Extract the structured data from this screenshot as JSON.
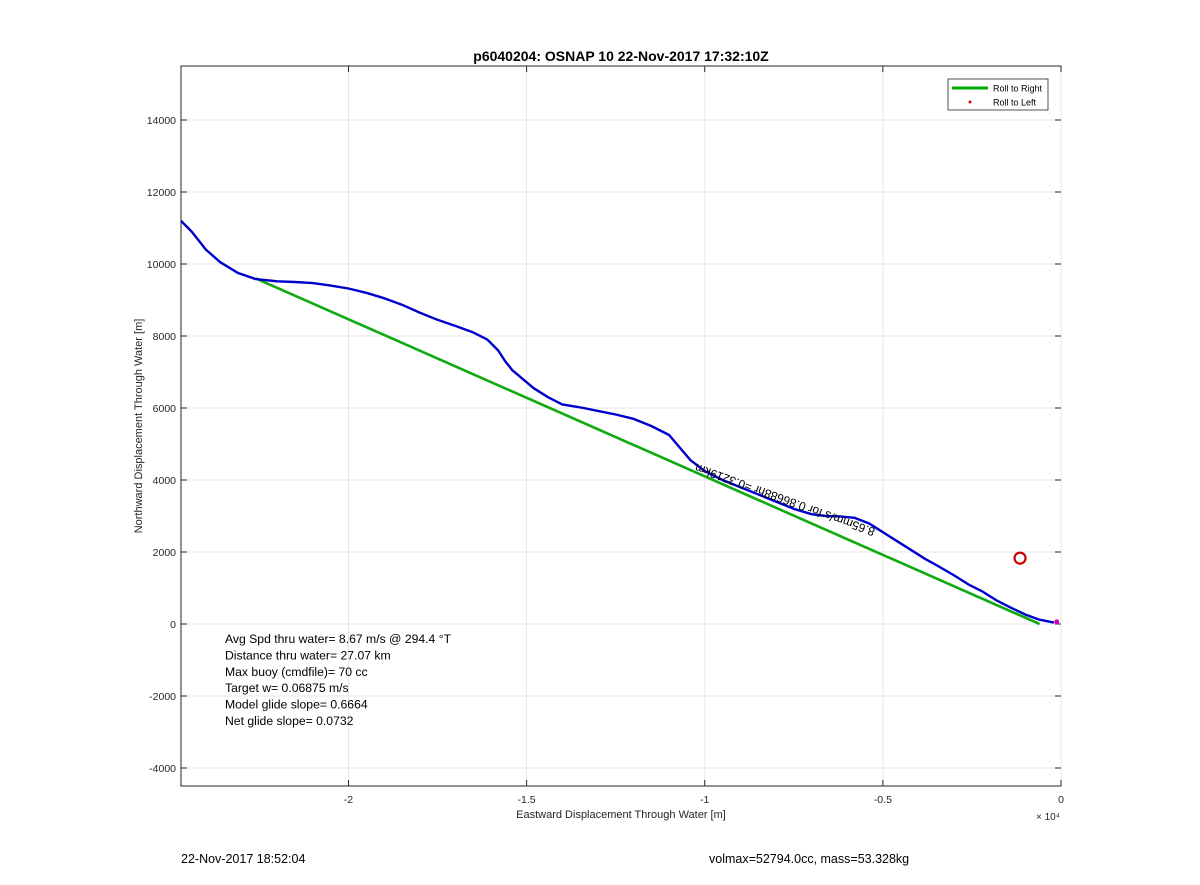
{
  "chart_data": {
    "type": "line",
    "title": "p6040204: OSNAP 10 22-Nov-2017 17:32:10Z",
    "xlabel": "Eastward Displacement Through Water [m]",
    "ylabel": "Northward Displacement Through Water [m]",
    "xlim": [
      -24700,
      0
    ],
    "ylim": [
      -4500,
      15500
    ],
    "x_ticks": [
      -20000,
      -15000,
      -10000,
      -5000,
      0
    ],
    "x_tick_labels": [
      "-2",
      "-1.5",
      "-1",
      "-0.5",
      "0"
    ],
    "x_exponent_label": "× 10⁴",
    "y_ticks": [
      -4000,
      -2000,
      0,
      2000,
      4000,
      6000,
      8000,
      10000,
      12000,
      14000
    ],
    "y_tick_labels": [
      "-4000",
      "-2000",
      "0",
      "2000",
      "4000",
      "6000",
      "8000",
      "10000",
      "12000",
      "14000"
    ],
    "grid": true,
    "legend_placement": "top-right",
    "legend": [
      {
        "label": "Roll to Right",
        "color": "#00aa00",
        "marker": "line"
      },
      {
        "label": "Roll to Left",
        "color": "#dd0000",
        "marker": "dot"
      }
    ],
    "series": [
      {
        "name": "Roll to Right",
        "color": "#11aa11",
        "x": [
          -22600,
          -600
        ],
        "y": [
          9600,
          0
        ]
      },
      {
        "color": "#0000cc",
        "x": [
          -24700,
          -24400,
          -24000,
          -23600,
          -23100,
          -22600,
          -22000,
          -21500,
          -21000,
          -20500,
          -20000,
          -19500,
          -19000,
          -18500,
          -18000,
          -17500,
          -17000,
          -16500,
          -16100,
          -15800,
          -15600,
          -15400,
          -15100,
          -14800,
          -14400,
          -14000,
          -13700,
          -13400,
          -13000,
          -12500,
          -12000,
          -11500,
          -11000,
          -10700,
          -10400,
          -10000,
          -9500,
          -9000,
          -8500,
          -8000,
          -7500,
          -7000,
          -6600,
          -6200,
          -5800,
          -5400,
          -5000,
          -4600,
          -4200,
          -3800,
          -3400,
          -3000,
          -2600,
          -2200,
          -1800,
          -1400,
          -1000,
          -600,
          -200
        ],
        "y": [
          11200,
          10900,
          10400,
          10050,
          9750,
          9580,
          9520,
          9500,
          9470,
          9400,
          9320,
          9200,
          9050,
          8870,
          8650,
          8450,
          8280,
          8100,
          7900,
          7600,
          7300,
          7050,
          6800,
          6550,
          6300,
          6100,
          6050,
          6000,
          5920,
          5820,
          5700,
          5500,
          5250,
          4900,
          4550,
          4250,
          4000,
          3800,
          3600,
          3400,
          3200,
          3050,
          3000,
          2990,
          2950,
          2800,
          2550,
          2300,
          2050,
          1800,
          1580,
          1350,
          1100,
          900,
          650,
          450,
          260,
          120,
          40
        ]
      }
    ],
    "markers": [
      {
        "type": "circle",
        "x": -1150,
        "y": 1830,
        "color": "#cc0000"
      },
      {
        "type": "dot",
        "x": -120,
        "y": 60,
        "color": "#cc00aa"
      }
    ],
    "annotations": {
      "rotated_label": "8.65mm/s for 0.86688hr =0.3219km",
      "rotated_label_x": -5200,
      "rotated_label_y": 2650,
      "rotated_label_angle_deg": 20,
      "info_lines": [
        "Avg Spd thru water=  8.67 m/s @ 294.4 °T",
        "Distance thru water= 27.07 km",
        "Max buoy (cmdfile)= 70 cc",
        "Target w= 0.06875 m/s",
        "Model glide slope= 0.6664",
        "Net glide slope= 0.0732"
      ]
    }
  },
  "footer": {
    "left": "22-Nov-2017 18:52:04",
    "right": "volmax=52794.0cc, mass=53.328kg"
  }
}
